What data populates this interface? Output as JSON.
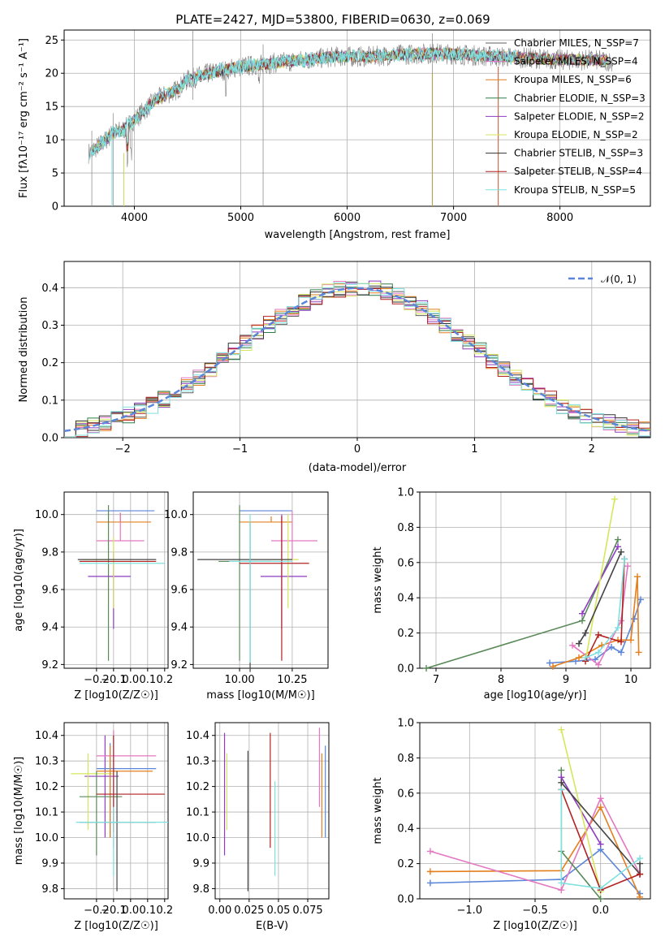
{
  "figure": {
    "title": "PLATE=2427, MJD=53800, FIBERID=0630, z=0.069"
  },
  "colors": {
    "Chabrier MILES": "#5f5f5f",
    "Salpeter MILES": "#e377c2",
    "Kroupa MILES": "#e37f1d",
    "Chabrier ELODIE": "#2e7d4a",
    "Salpeter ELODIE": "#8e3dbf",
    "Kroupa ELODIE": "#d6e65c",
    "Chabrier STELIB": "#333333",
    "Salpeter STELIB": "#b22222",
    "Kroupa STELIB": "#7fe0e0",
    "dataline": "#808080",
    "gauss": "#5b85d9",
    "blue": "#5b85d9",
    "orange": "#e37f1d",
    "pink": "#e377c2",
    "green": "#5a8a5a",
    "purple": "#8e3dbf",
    "yellow": "#d6e65c",
    "dark": "#444444",
    "red": "#b22222",
    "cyan": "#7fe0e0"
  },
  "chart_data": [
    {
      "id": "spectrum",
      "type": "line",
      "title": "PLATE=2427, MJD=53800, FIBERID=0630, z=0.069",
      "xlabel": "wavelength [Angstrom, rest frame]",
      "ylabel": "Flux [fλ10⁻¹⁷ erg cm⁻² s⁻¹ A⁻¹]",
      "xlim": [
        3340,
        8850
      ],
      "ylim": [
        0,
        26.5
      ],
      "xticks": [
        4000,
        5000,
        6000,
        7000,
        8000
      ],
      "yticks": [
        0,
        5,
        10,
        15,
        20,
        25
      ],
      "legend": [
        "Chabrier MILES, N_SSP=7",
        "Salpeter MILES, N_SSP=4",
        "Kroupa MILES, N_SSP=6",
        "Chabrier ELODIE, N_SSP=3",
        "Salpeter ELODIE, N_SSP=2",
        "Kroupa ELODIE, N_SSP=2",
        "Chabrier STELIB, N_SSP=3",
        "Salpeter STELIB, N_SSP=4",
        "Kroupa STELIB, N_SSP=5"
      ],
      "legend_placement": "upper right",
      "continuum": {
        "x": [
          3570,
          3700,
          3800,
          3900,
          4000,
          4100,
          4200,
          4300,
          4400,
          4500,
          4700,
          5000,
          5300,
          5600,
          5900,
          6200,
          6500,
          6800,
          7100,
          7400,
          7700,
          8000,
          8300,
          8500
        ],
        "y": [
          8,
          9.5,
          11,
          11.5,
          13,
          14.5,
          16,
          16.8,
          17.5,
          19,
          20,
          21,
          21.5,
          22,
          22.5,
          22.5,
          22.8,
          23,
          22.8,
          22.5,
          22.3,
          22,
          22,
          21.8
        ]
      }
    },
    {
      "id": "residuals",
      "type": "area",
      "xlabel": "(data-model)/error",
      "ylabel": "Normed distribution",
      "xlim": [
        -2.5,
        2.5
      ],
      "ylim": [
        0,
        0.47
      ],
      "xticks": [
        -2,
        -1,
        0,
        1,
        2
      ],
      "yticks": [
        0.0,
        0.1,
        0.2,
        0.3,
        0.4
      ],
      "legend": [
        "𝒩(0, 1)"
      ],
      "legend_placement": "upper right"
    },
    {
      "id": "age_vs_Z",
      "type": "scatter",
      "xlabel": "Z [log10(Z/Z☉)]",
      "ylabel": "age  [log10(age/yr)]",
      "xlim": [
        -0.39,
        0.22
      ],
      "ylim": [
        9.18,
        10.12
      ],
      "xticks": [
        -0.2,
        -0.1,
        0.0,
        0.1,
        0.2
      ],
      "yticks": [
        9.2,
        9.4,
        9.6,
        9.8,
        10.0
      ],
      "points": [
        {
          "color": "blue",
          "x": -0.03,
          "xerr": [
            0.17,
            0.17
          ],
          "y": 10.02,
          "yerr": [
            0.0,
            0.0
          ]
        },
        {
          "color": "orange",
          "x": -0.06,
          "xerr": [
            0.14,
            0.18
          ],
          "y": 9.96,
          "yerr": [
            0.0,
            0.05
          ]
        },
        {
          "color": "pink",
          "x": -0.06,
          "xerr": [
            0.14,
            0.14
          ],
          "y": 9.86,
          "yerr": [
            0.0,
            0.15
          ]
        },
        {
          "color": "green",
          "x": -0.13,
          "xerr": [
            0.17,
            0.0
          ],
          "y": 9.75,
          "yerr": [
            0.53,
            0.3
          ]
        },
        {
          "color": "purple",
          "x": -0.1,
          "xerr": [
            0.15,
            0.1
          ],
          "y": 9.67,
          "yerr": [
            0.28,
            0.13
          ]
        },
        {
          "color": "yellow",
          "x": -0.1,
          "xerr": [
            0.18,
            0.0
          ],
          "y": 9.76,
          "yerr": [
            0.26,
            0.12
          ]
        },
        {
          "color": "dark",
          "x": -0.05,
          "xerr": [
            0.26,
            0.2
          ],
          "y": 9.76,
          "yerr": [
            0.0,
            0.0
          ]
        },
        {
          "color": "red",
          "x": -0.05,
          "xerr": [
            0.25,
            0.2
          ],
          "y": 9.75,
          "yerr": [
            0.0,
            0.0
          ]
        },
        {
          "color": "cyan",
          "x": -0.05,
          "xerr": [
            0.25,
            0.25
          ],
          "y": 9.74,
          "yerr": [
            0.0,
            0.0
          ]
        }
      ]
    },
    {
      "id": "age_vs_mass",
      "type": "scatter",
      "xlabel": "mass [log10(M/M☉)]",
      "ylabel": "",
      "xlim": [
        9.78,
        10.42
      ],
      "ylim": [
        9.18,
        10.12
      ],
      "xticks": [
        10.0,
        10.25
      ],
      "yticks": [
        9.2,
        9.4,
        9.6,
        9.8,
        10.0
      ]
    },
    {
      "id": "massweight_vs_age",
      "type": "line",
      "xlabel": "age  [log10(age/yr)]",
      "ylabel": "mass weight",
      "xlim": [
        6.75,
        10.3
      ],
      "ylim": [
        0.0,
        1.0
      ],
      "xticks": [
        7,
        8,
        9,
        10
      ],
      "yticks": [
        0.0,
        0.2,
        0.4,
        0.6,
        0.8,
        1.0
      ],
      "series": [
        {
          "color": "blue",
          "x": [
            8.75,
            9.15,
            9.45,
            9.7,
            9.85,
            10.05,
            10.15
          ],
          "y": [
            0.03,
            0.04,
            0.05,
            0.12,
            0.09,
            0.28,
            0.39
          ]
        },
        {
          "color": "orange",
          "x": [
            8.8,
            9.2,
            9.55,
            9.8,
            10.0,
            10.1,
            10.12
          ],
          "y": [
            0.01,
            0.06,
            0.13,
            0.16,
            0.16,
            0.52,
            0.09
          ]
        },
        {
          "color": "pink",
          "x": [
            9.1,
            9.5,
            9.85,
            9.95
          ],
          "y": [
            0.13,
            0.02,
            0.27,
            0.58
          ]
        },
        {
          "color": "green",
          "x": [
            6.85,
            9.25,
            9.8
          ],
          "y": [
            0.0,
            0.27,
            0.73
          ]
        },
        {
          "color": "purple",
          "x": [
            9.25,
            9.8
          ],
          "y": [
            0.31,
            0.69
          ]
        },
        {
          "color": "yellow",
          "x": [
            9.3,
            9.75
          ],
          "y": [
            0.04,
            0.96
          ]
        },
        {
          "color": "dark",
          "x": [
            9.2,
            9.3,
            9.85
          ],
          "y": [
            0.14,
            0.2,
            0.66
          ]
        },
        {
          "color": "red",
          "x": [
            9.3,
            9.5,
            9.85,
            9.9
          ],
          "y": [
            0.04,
            0.19,
            0.15,
            0.62
          ]
        },
        {
          "color": "cyan",
          "x": [
            9.3,
            9.5,
            9.8,
            9.9
          ],
          "y": [
            0.06,
            0.09,
            0.23,
            0.62
          ]
        }
      ]
    },
    {
      "id": "mass_vs_Z",
      "type": "scatter",
      "xlabel": "Z [log10(Z/Z☉)]",
      "ylabel": "mass [log10(M/M☉)]",
      "xlim": [
        -0.39,
        0.22
      ],
      "ylim": [
        9.76,
        10.45
      ],
      "xticks": [
        -0.2,
        -0.1,
        0.0,
        0.1,
        0.2
      ],
      "yticks": [
        9.8,
        9.9,
        10.0,
        10.1,
        10.2,
        10.3,
        10.4
      ]
    },
    {
      "id": "mass_vs_EBV",
      "type": "scatter",
      "xlabel": "E(B-V)",
      "ylabel": "",
      "xlim": [
        -0.004,
        0.093
      ],
      "ylim": [
        9.76,
        10.45
      ],
      "xticks": [
        0.0,
        0.025,
        0.05,
        0.075
      ],
      "yticks": [
        9.8,
        9.9,
        10.0,
        10.1,
        10.2,
        10.3,
        10.4
      ],
      "points": [
        {
          "color": "purple",
          "x": 0.004,
          "ylo": 9.93,
          "yhi": 10.41
        },
        {
          "color": "yellow",
          "x": 0.006,
          "ylo": 10.03,
          "yhi": 10.33
        },
        {
          "color": "dark",
          "x": 0.024,
          "ylo": 9.79,
          "yhi": 10.34
        },
        {
          "color": "red",
          "x": 0.043,
          "ylo": 9.96,
          "yhi": 10.41
        },
        {
          "color": "cyan",
          "x": 0.047,
          "ylo": 9.85,
          "yhi": 10.22
        },
        {
          "color": "pink",
          "x": 0.085,
          "ylo": 10.12,
          "yhi": 10.43
        },
        {
          "color": "orange",
          "x": 0.087,
          "ylo": 10.0,
          "yhi": 10.33
        },
        {
          "color": "blue",
          "x": 0.09,
          "ylo": 10.0,
          "yhi": 10.36
        }
      ]
    },
    {
      "id": "massweight_vs_Z",
      "type": "line",
      "xlabel": "Z [log10(Z/Z☉)]",
      "ylabel": "mass weight",
      "xlim": [
        -1.38,
        0.38
      ],
      "ylim": [
        0.0,
        1.0
      ],
      "xticks": [
        -1.0,
        -0.5,
        0.0
      ],
      "yticks": [
        0.0,
        0.2,
        0.4,
        0.6,
        0.8,
        1.0
      ],
      "series": [
        {
          "color": "blue",
          "x": [
            -1.3,
            -0.3,
            0.0,
            0.3
          ],
          "y": [
            0.09,
            0.11,
            0.28,
            0.03
          ]
        },
        {
          "color": "orange",
          "x": [
            -1.3,
            -0.3,
            0.0,
            0.3
          ],
          "y": [
            0.155,
            0.16,
            0.52,
            0.01
          ]
        },
        {
          "color": "pink",
          "x": [
            -1.3,
            -0.3,
            0.0,
            0.3
          ],
          "y": [
            0.27,
            0.05,
            0.57,
            0.14
          ]
        },
        {
          "color": "green",
          "x": [
            -0.3,
            -0.3,
            0.0
          ],
          "y": [
            0.73,
            0.27,
            0.0
          ]
        },
        {
          "color": "purple",
          "x": [
            -0.3,
            0.0
          ],
          "y": [
            0.69,
            0.31
          ]
        },
        {
          "color": "yellow",
          "x": [
            -0.3,
            0.0
          ],
          "y": [
            0.96,
            0.04
          ]
        },
        {
          "color": "dark",
          "x": [
            -0.3,
            0.3,
            0.3
          ],
          "y": [
            0.66,
            0.14,
            0.2
          ]
        },
        {
          "color": "red",
          "x": [
            -0.3,
            0.0,
            0.3
          ],
          "y": [
            0.62,
            0.05,
            0.14
          ]
        },
        {
          "color": "cyan",
          "x": [
            -0.3,
            -0.3,
            0.0,
            0.3
          ],
          "y": [
            0.62,
            0.09,
            0.06,
            0.23
          ]
        }
      ]
    }
  ]
}
